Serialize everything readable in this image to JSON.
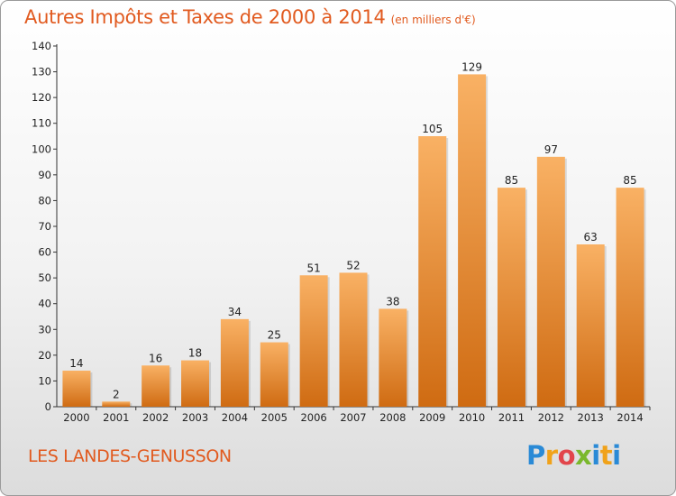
{
  "title": {
    "main": "Autres Impôts et Taxes de 2000 à 2014",
    "unit": "(en milliers d'€)"
  },
  "location": "LES LANDES-GENUSSON",
  "logo": {
    "text": "Proxiti",
    "letters": [
      "P",
      "r",
      "o",
      "x",
      "i",
      "t",
      "i"
    ],
    "colors": [
      "#2a8ad6",
      "#f0a21a",
      "#e2454b",
      "#7ab82d",
      "#2a8ad6",
      "#f0a21a",
      "#2a8ad6"
    ]
  },
  "chart_data": {
    "type": "bar",
    "categories": [
      "2000",
      "2001",
      "2002",
      "2003",
      "2004",
      "2005",
      "2006",
      "2007",
      "2008",
      "2009",
      "2010",
      "2011",
      "2012",
      "2013",
      "2014"
    ],
    "values": [
      14,
      2,
      16,
      18,
      34,
      25,
      51,
      52,
      38,
      105,
      129,
      85,
      97,
      63,
      85
    ],
    "ylim": [
      0,
      140
    ],
    "yticks": [
      "0",
      "10",
      "20",
      "30",
      "40",
      "50",
      "60",
      "70",
      "80",
      "90",
      "100",
      "110",
      "120",
      "130",
      "140"
    ],
    "xlabel": "",
    "ylabel": "",
    "grid": false,
    "colors": {
      "bar": "#f08c30",
      "bar_light": "#f9b164",
      "bar_dark": "#cf6b12"
    }
  }
}
